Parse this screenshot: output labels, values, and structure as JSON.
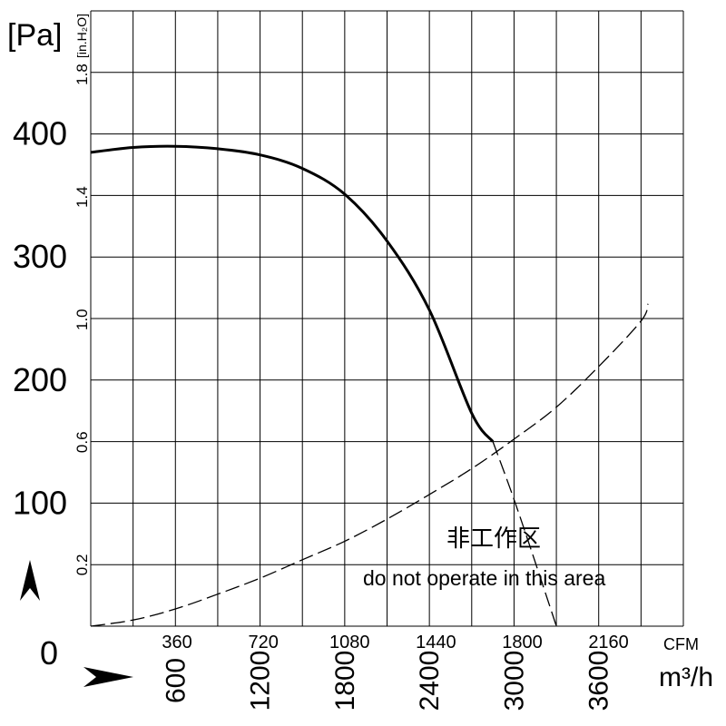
{
  "chart_data": {
    "type": "line",
    "x_axis": {
      "unit": "m³/h",
      "unit_cfm": "CFM",
      "range": [
        0,
        4200
      ],
      "cfm_ticks": [
        "360",
        "720",
        "1080",
        "1440",
        "1800",
        "2160"
      ],
      "cfm_tick_values": [
        360,
        720,
        1080,
        1440,
        1800,
        2160
      ],
      "m3h_ticks": [
        "600",
        "1200",
        "1800",
        "2400",
        "3000",
        "3600"
      ],
      "m3h_tick_values": [
        600,
        1200,
        1800,
        2400,
        3000,
        3600
      ],
      "grid_step": 300
    },
    "y_axis": {
      "unit": "[Pa]",
      "unit_inh2o": "[in.H₂O]",
      "range": [
        0,
        500
      ],
      "pa_ticks": [
        "0",
        "100",
        "200",
        "300",
        "400"
      ],
      "pa_tick_values": [
        0,
        100,
        200,
        300,
        400
      ],
      "inh2o_ticks": [
        "0.2",
        "0.6",
        "1.0",
        "1.4",
        "1.8"
      ],
      "inh2o_tick_values": [
        0.2,
        0.6,
        1.0,
        1.4,
        1.8
      ],
      "grid_step": 50
    },
    "grid": true,
    "series": [
      {
        "style": "solid",
        "x": [
          0,
          300,
          600,
          900,
          1200,
          1500,
          1800,
          2100,
          2400,
          2700,
          2850
        ],
        "y": [
          385,
          389,
          390,
          388,
          383,
          372,
          351,
          313,
          257,
          173,
          150
        ]
      },
      {
        "style": "dashed",
        "x": [
          2850,
          3000,
          3150,
          3300
        ],
        "y": [
          150,
          103,
          52,
          0
        ]
      },
      {
        "style": "dashed",
        "x": [
          0,
          300,
          600,
          900,
          1200,
          1500,
          1800,
          2100,
          2400,
          2700,
          3000,
          3300,
          3600,
          3900,
          3950
        ],
        "y": [
          0,
          5,
          14,
          26,
          39,
          54,
          69,
          87,
          107,
          128,
          152,
          178,
          211,
          248,
          262
        ]
      }
    ],
    "annotation": {
      "text_cn": "非工作区",
      "text_en": "do not operate in this area"
    }
  }
}
